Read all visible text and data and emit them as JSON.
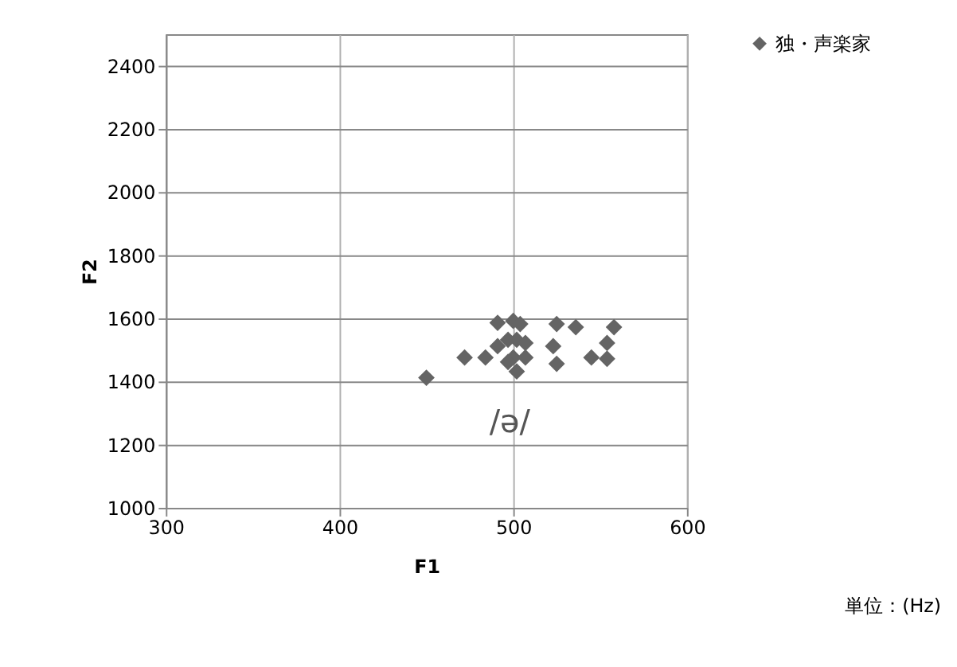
{
  "chart_data": {
    "type": "scatter",
    "xlabel": "F1",
    "ylabel": "F2",
    "x": [
      450,
      472,
      484,
      491,
      500,
      504,
      497,
      502,
      507,
      491,
      507,
      500,
      502,
      497,
      525,
      536,
      523,
      525,
      545,
      554,
      554,
      558
    ],
    "series": [
      {
        "name": "独・声楽家",
        "color": "#646464",
        "values": [
          1412,
          1476,
          1476,
          1586,
          1592,
          1582,
          1532,
          1532,
          1522,
          1512,
          1476,
          1476,
          1432,
          1462,
          1582,
          1572,
          1512,
          1456,
          1476,
          1472,
          1522,
          1572
        ]
      }
    ],
    "xlim": [
      300,
      600
    ],
    "xticks": [
      300,
      400,
      500,
      600
    ],
    "ylim": [
      1000,
      2500
    ],
    "yticks": [
      1000,
      1200,
      1400,
      1600,
      1800,
      2000,
      2200,
      2400
    ],
    "grid": true,
    "marker": "diamond",
    "legend": "right",
    "annotations": [
      "/ə/",
      "単位：(Hz)"
    ]
  }
}
